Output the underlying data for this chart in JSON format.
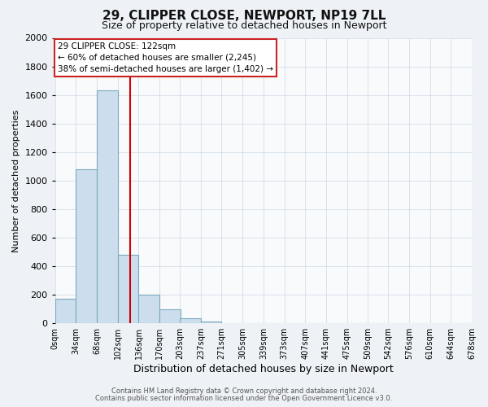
{
  "title": "29, CLIPPER CLOSE, NEWPORT, NP19 7LL",
  "subtitle": "Size of property relative to detached houses in Newport",
  "xlabel": "Distribution of detached houses by size in Newport",
  "ylabel": "Number of detached properties",
  "bin_labels": [
    "0sqm",
    "34sqm",
    "68sqm",
    "102sqm",
    "136sqm",
    "170sqm",
    "203sqm",
    "237sqm",
    "271sqm",
    "305sqm",
    "339sqm",
    "373sqm",
    "407sqm",
    "441sqm",
    "475sqm",
    "509sqm",
    "542sqm",
    "576sqm",
    "610sqm",
    "644sqm",
    "678sqm"
  ],
  "bin_edges": [
    0,
    34,
    68,
    102,
    136,
    170,
    203,
    237,
    271,
    305,
    339,
    373,
    407,
    441,
    475,
    509,
    542,
    576,
    610,
    644,
    678
  ],
  "bar_values": [
    170,
    1080,
    1630,
    480,
    200,
    100,
    35,
    15,
    0,
    0,
    0,
    0,
    0,
    0,
    0,
    0,
    0,
    0,
    0,
    0
  ],
  "bar_color": "#ccdded",
  "bar_edge_color": "#7aaabb",
  "red_line_x": 122,
  "annotation_title": "29 CLIPPER CLOSE: 122sqm",
  "annotation_line1": "← 60% of detached houses are smaller (2,245)",
  "annotation_line2": "38% of semi-detached houses are larger (1,402) →",
  "annotation_box_facecolor": "#ffffff",
  "annotation_box_edgecolor": "#cc2222",
  "ylim": [
    0,
    2000
  ],
  "yticks": [
    0,
    200,
    400,
    600,
    800,
    1000,
    1200,
    1400,
    1600,
    1800,
    2000
  ],
  "footnote1": "Contains HM Land Registry data © Crown copyright and database right 2024.",
  "footnote2": "Contains public sector information licensed under the Open Government Licence v3.0.",
  "fig_facecolor": "#eef2f6",
  "plot_facecolor": "#f8fafc",
  "grid_color": "#ccd8e4",
  "title_fontsize": 11,
  "subtitle_fontsize": 9,
  "ylabel_fontsize": 8,
  "xlabel_fontsize": 9
}
